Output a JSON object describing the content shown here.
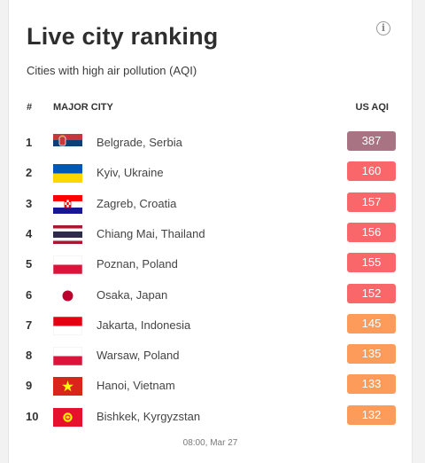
{
  "card": {
    "title": "Live city ranking",
    "subtitle": "Cities with high air pollution (AQI)",
    "info_icon": "info-icon"
  },
  "columns": {
    "rank": "#",
    "city": "MAJOR CITY",
    "aqi": "US AQI"
  },
  "colors": {
    "very_unhealthy": "#a87383",
    "unhealthy": "#f9676a",
    "unhealthy_sensitive": "#fd9b5a"
  },
  "rows": [
    {
      "rank": "1",
      "city": "Belgrade, Serbia",
      "aqi": "387",
      "flag": "serbia-flag-icon",
      "color": "#a87383"
    },
    {
      "rank": "2",
      "city": "Kyiv, Ukraine",
      "aqi": "160",
      "flag": "ukraine-flag-icon",
      "color": "#f9676a"
    },
    {
      "rank": "3",
      "city": "Zagreb, Croatia",
      "aqi": "157",
      "flag": "croatia-flag-icon",
      "color": "#f9676a"
    },
    {
      "rank": "4",
      "city": "Chiang Mai, Thailand",
      "aqi": "156",
      "flag": "thailand-flag-icon",
      "color": "#f9676a"
    },
    {
      "rank": "5",
      "city": "Poznan, Poland",
      "aqi": "155",
      "flag": "poland-flag-icon",
      "color": "#f9676a"
    },
    {
      "rank": "6",
      "city": "Osaka, Japan",
      "aqi": "152",
      "flag": "japan-flag-icon",
      "color": "#f9676a"
    },
    {
      "rank": "7",
      "city": "Jakarta, Indonesia",
      "aqi": "145",
      "flag": "indonesia-flag-icon",
      "color": "#fd9b5a"
    },
    {
      "rank": "8",
      "city": "Warsaw, Poland",
      "aqi": "135",
      "flag": "poland-flag-icon",
      "color": "#fd9b5a"
    },
    {
      "rank": "9",
      "city": "Hanoi, Vietnam",
      "aqi": "133",
      "flag": "vietnam-flag-icon",
      "color": "#fd9b5a"
    },
    {
      "rank": "10",
      "city": "Bishkek, Kyrgyzstan",
      "aqi": "132",
      "flag": "kyrgyzstan-flag-icon",
      "color": "#fd9b5a"
    }
  ],
  "footer": {
    "timestamp": "08:00, Mar 27"
  }
}
